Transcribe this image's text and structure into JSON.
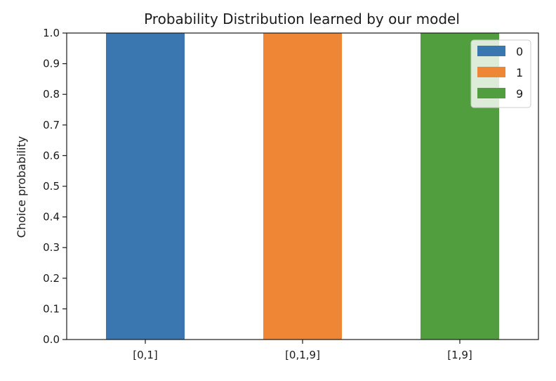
{
  "chart_data": {
    "type": "bar",
    "title": "Probability Distribution learned by our model",
    "xlabel": "",
    "ylabel": "Choice probability",
    "ylim": [
      0,
      1.0
    ],
    "yticks": [
      "0.0",
      "0.1",
      "0.2",
      "0.3",
      "0.4",
      "0.5",
      "0.6",
      "0.7",
      "0.8",
      "0.9",
      "1.0"
    ],
    "categories": [
      "[0,1]",
      "[0,1,9]",
      "[1,9]"
    ],
    "stacked": true,
    "series": [
      {
        "name": "0",
        "color": "#3a76af",
        "values": [
          1.0,
          0.0,
          0.0
        ]
      },
      {
        "name": "1",
        "color": "#ef8636",
        "values": [
          0.0,
          1.0,
          0.0
        ]
      },
      {
        "name": "9",
        "color": "#519e3e",
        "values": [
          0.0,
          0.0,
          1.0
        ]
      }
    ],
    "grid": false,
    "legend": "top-right"
  }
}
